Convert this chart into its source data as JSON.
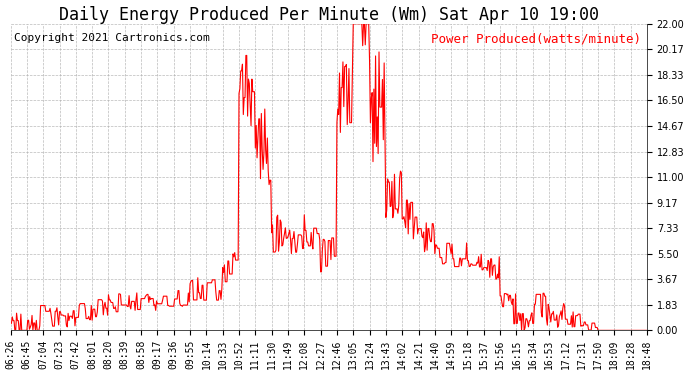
{
  "title": "Daily Energy Produced Per Minute (Wm) Sat Apr 10 19:00",
  "copyright": "Copyright 2021 Cartronics.com",
  "legend_label": "Power Produced(watts/minute)",
  "legend_color": "red",
  "copyright_color": "black",
  "title_color": "black",
  "line_color": "red",
  "background_color": "white",
  "grid_color": "#aaaaaa",
  "ylim": [
    0.0,
    22.0
  ],
  "yticks": [
    0.0,
    1.83,
    3.67,
    5.5,
    7.33,
    9.17,
    11.0,
    12.83,
    14.67,
    16.5,
    18.33,
    20.17,
    22.0
  ],
  "xtick_labels": [
    "06:26",
    "06:45",
    "07:04",
    "07:23",
    "07:42",
    "08:01",
    "08:20",
    "08:39",
    "08:58",
    "09:17",
    "09:36",
    "09:55",
    "10:14",
    "10:33",
    "10:52",
    "11:11",
    "11:30",
    "11:49",
    "12:08",
    "12:27",
    "12:46",
    "13:05",
    "13:24",
    "13:43",
    "14:02",
    "14:21",
    "14:40",
    "14:59",
    "15:18",
    "15:37",
    "15:56",
    "16:15",
    "16:34",
    "16:53",
    "17:12",
    "17:31",
    "17:50",
    "18:09",
    "18:28",
    "18:48"
  ],
  "title_fontsize": 12,
  "copyright_fontsize": 8,
  "legend_fontsize": 9,
  "tick_fontsize": 7,
  "line_width": 0.8
}
